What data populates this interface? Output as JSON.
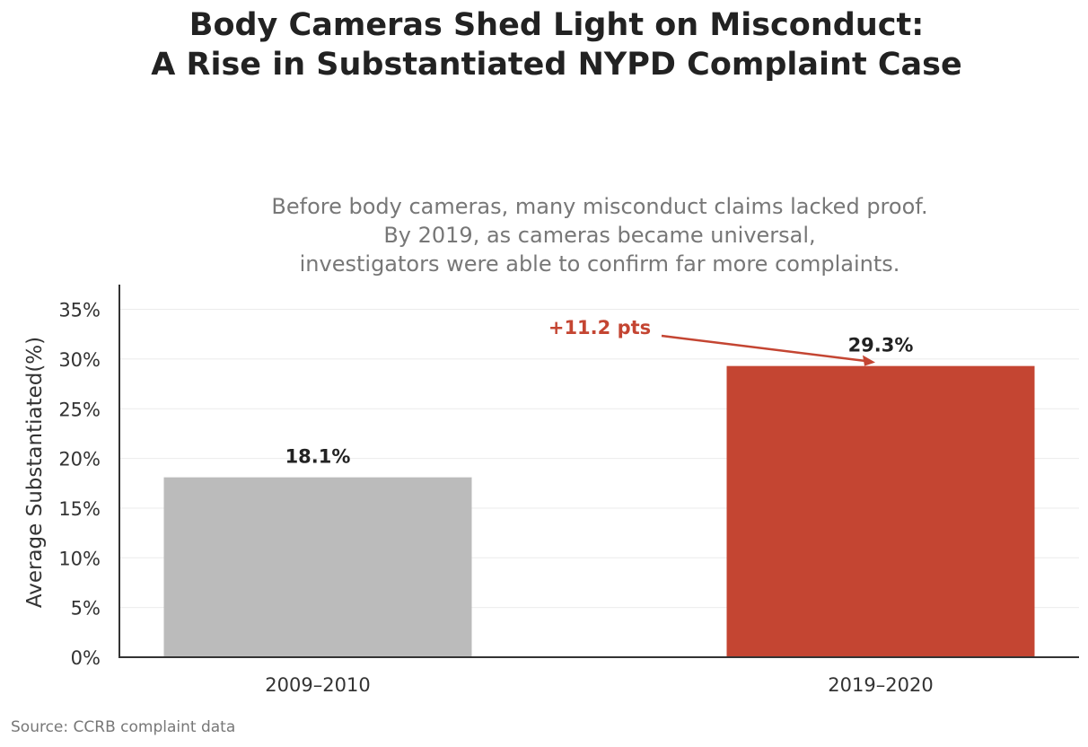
{
  "chart_data": {
    "type": "bar",
    "title": [
      "Body Cameras Shed Light on Misconduct:",
      "A Rise in Substantiated NYPD Complaint Case"
    ],
    "subtitle": [
      "Before body cameras, many misconduct claims lacked proof.",
      "By 2019, as cameras became universal,",
      "investigators were able to confirm far more complaints."
    ],
    "ylabel": "Average Substantiated(%)",
    "ylim": [
      0,
      37
    ],
    "yticks": [
      0,
      5,
      10,
      15,
      20,
      25,
      30,
      35
    ],
    "ytick_format": "{v}%",
    "categories": [
      "2009–2010",
      "2019–2020"
    ],
    "values": [
      18.1,
      29.3
    ],
    "data_labels": [
      "18.1%",
      "29.3%"
    ],
    "bar_colors": [
      "#bbbbbb",
      "#c44532"
    ],
    "grid": true,
    "annotation": {
      "text": "+11.2 pts",
      "color": "#c44532",
      "points_to": "2019–2020"
    },
    "source": "Source: CCRB complaint data"
  }
}
